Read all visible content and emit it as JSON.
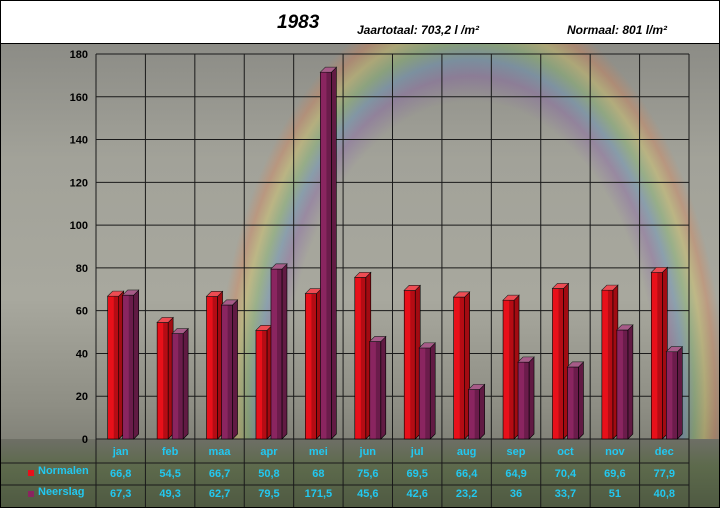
{
  "header": {
    "title": "1983",
    "total_label": "Jaartotaal: 703,2  l /m²",
    "normal_label": "Normaal: 801 l/m²"
  },
  "colors": {
    "normalen": "#e8101a",
    "neerslag": "#8a2560",
    "label_text": "#22c8f0"
  },
  "chart_data": {
    "type": "bar",
    "categories": [
      "jan",
      "feb",
      "maa",
      "apr",
      "mei",
      "jun",
      "jul",
      "aug",
      "sep",
      "oct",
      "nov",
      "dec"
    ],
    "series": [
      {
        "name": "Normalen",
        "values": [
          66.8,
          54.5,
          66.7,
          50.8,
          68,
          75.6,
          69.5,
          66.4,
          64.9,
          70.4,
          69.6,
          77.9
        ]
      },
      {
        "name": "Neerslag",
        "values": [
          67.3,
          49.3,
          62.7,
          79.5,
          171.5,
          45.6,
          42.6,
          23.2,
          36,
          33.7,
          51,
          40.8
        ]
      }
    ],
    "value_labels": [
      [
        "66,8",
        "54,5",
        "66,7",
        "50,8",
        "68",
        "75,6",
        "69,5",
        "66,4",
        "64,9",
        "70,4",
        "69,6",
        "77,9"
      ],
      [
        "67,3",
        "49,3",
        "62,7",
        "79,5",
        "171,5",
        "45,6",
        "42,6",
        "23,2",
        "36",
        "33,7",
        "51",
        "40,8"
      ]
    ],
    "yticks": [
      "0",
      "20",
      "40",
      "60",
      "80",
      "100",
      "120",
      "140",
      "160",
      "180"
    ],
    "ylim": [
      0,
      180
    ],
    "grid": true,
    "legend": "bottom-left table"
  }
}
